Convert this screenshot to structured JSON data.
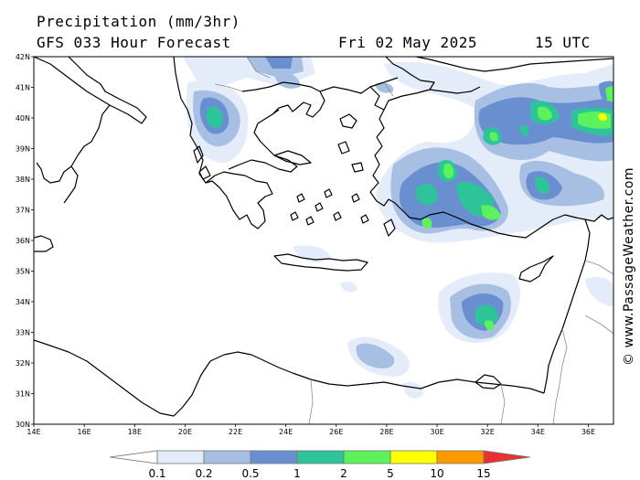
{
  "header": {
    "title": "Precipitation (mm/3hr)",
    "subtitle": "GFS 033 Hour Forecast",
    "date": "Fri 02 May 2025",
    "time": "15 UTC"
  },
  "credit": "© www.PassageWeather.com",
  "map": {
    "lon_range": [
      14,
      37
    ],
    "lat_range": [
      30,
      42
    ],
    "lon_ticks": [
      "14E",
      "16E",
      "18E",
      "20E",
      "22E",
      "24E",
      "26E",
      "28E",
      "30E",
      "32E",
      "34E",
      "36E"
    ],
    "lat_ticks": [
      "42N",
      "41N",
      "40N",
      "39N",
      "38N",
      "37N",
      "36N",
      "35N",
      "34N",
      "33N",
      "32N",
      "31N",
      "30N"
    ]
  },
  "legend": {
    "labels": [
      "0.1",
      "0.2",
      "0.5",
      "1",
      "2",
      "5",
      "10",
      "15"
    ],
    "colors": [
      "#ffffff",
      "#e3ecf8",
      "#a6bfe2",
      "#6a8fd1",
      "#2ec49a",
      "#5cf25c",
      "#ffff00",
      "#ff9900",
      "#e83232"
    ]
  }
}
